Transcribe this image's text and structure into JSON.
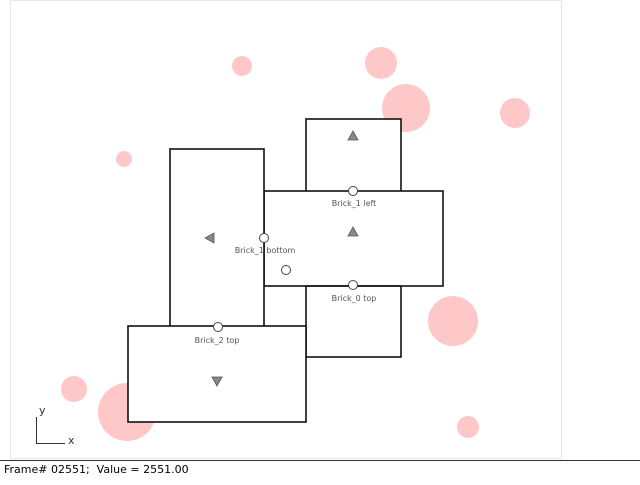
{
  "scene": {
    "colors": {
      "border": "#e6e6e6",
      "brick_stroke": "#111111",
      "ball_fill": "#ffc8c8",
      "marker_fill": "#888888",
      "label_color": "#555555"
    },
    "labels": {
      "brick_1_left": "Brick_1 left",
      "brick_1_bottom": "Brick_1 bottom",
      "brick_0_top": "Brick_0 top",
      "brick_2_top": "Brick_2 top"
    },
    "axes": {
      "y_label": "y",
      "x_label": "x"
    }
  },
  "status": {
    "text": "Frame# 02551;  Value = 2551.00"
  }
}
